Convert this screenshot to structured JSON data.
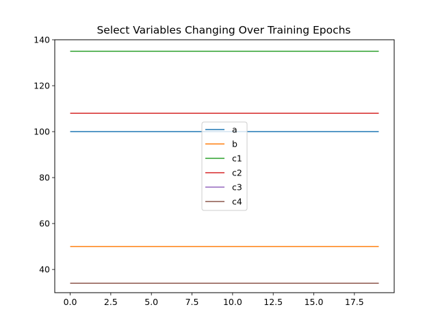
{
  "chart_data": {
    "type": "line",
    "title": "Select Variables Changing Over Training Epochs",
    "xlabel": "",
    "ylabel": "",
    "xlim": [
      -0.95,
      19.95
    ],
    "ylim": [
      29.9,
      140
    ],
    "xticks": [
      0.0,
      2.5,
      5.0,
      7.5,
      10.0,
      12.5,
      15.0,
      17.5
    ],
    "xtick_labels": [
      "0.0",
      "2.5",
      "5.0",
      "7.5",
      "10.0",
      "12.5",
      "15.0",
      "17.5"
    ],
    "yticks": [
      40,
      60,
      80,
      100,
      120,
      140
    ],
    "ytick_labels": [
      "40",
      "60",
      "80",
      "100",
      "120",
      "140"
    ],
    "x": [
      0,
      1,
      2,
      3,
      4,
      5,
      6,
      7,
      8,
      9,
      10,
      11,
      12,
      13,
      14,
      15,
      16,
      17,
      18,
      19
    ],
    "series": [
      {
        "name": "a",
        "color": "#1f77b4",
        "values": [
          100,
          100,
          100,
          100,
          100,
          100,
          100,
          100,
          100,
          100,
          100,
          100,
          100,
          100,
          100,
          100,
          100,
          100,
          100,
          100
        ]
      },
      {
        "name": "b",
        "color": "#ff7f0e",
        "values": [
          50,
          50,
          50,
          50,
          50,
          50,
          50,
          50,
          50,
          50,
          50,
          50,
          50,
          50,
          50,
          50,
          50,
          50,
          50,
          50
        ]
      },
      {
        "name": "c1",
        "color": "#2ca02c",
        "values": [
          135,
          135,
          135,
          135,
          135,
          135,
          135,
          135,
          135,
          135,
          135,
          135,
          135,
          135,
          135,
          135,
          135,
          135,
          135,
          135
        ]
      },
      {
        "name": "c2",
        "color": "#d62728",
        "values": [
          108,
          108,
          108,
          108,
          108,
          108,
          108,
          108,
          108,
          108,
          108,
          108,
          108,
          108,
          108,
          108,
          108,
          108,
          108,
          108
        ]
      },
      {
        "name": "c3",
        "color": "#9467bd",
        "values": [
          34,
          34,
          34,
          34,
          34,
          34,
          34,
          34,
          34,
          34,
          34,
          34,
          34,
          34,
          34,
          34,
          34,
          34,
          34,
          34
        ]
      },
      {
        "name": "c4",
        "color": "#8c564b",
        "values": [
          34,
          34,
          34,
          34,
          34,
          34,
          34,
          34,
          34,
          34,
          34,
          34,
          34,
          34,
          34,
          34,
          34,
          34,
          34,
          34
        ]
      }
    ],
    "grid": false,
    "legend_position": "center"
  }
}
